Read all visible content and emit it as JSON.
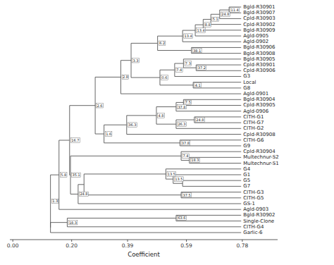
{
  "chart_data": {
    "type": "dendrogram",
    "xlabel": "Coefficient",
    "xlim": [
      -0.01,
      0.9
    ],
    "xticks": [
      {
        "value": 0.0,
        "label": "0.00"
      },
      {
        "value": 0.2,
        "label": "0.20"
      },
      0.39,
      0.59,
      0.78
    ],
    "color": "#555555",
    "leaf_value": 0.776,
    "categories": [
      "Bgld-R30901",
      "Bgld-R30907",
      "Cpld-R30903",
      "Cpld-R30902",
      "Bgld-R30909",
      "Agld-0905",
      "Agld-0902",
      "Bgld-R30906",
      "Bgld-R30908",
      "Bgld-R30905",
      "Cpld-R30901",
      "Cpld-R30906",
      "G3",
      "Local",
      "G8",
      "Agld-0901",
      "Bgld-R30904",
      "Cpld-R30905",
      "Agld-0906",
      "CITH-G1",
      "CITH-G7",
      "CITH-G2",
      "Cpld-R30908",
      "CITH-G6",
      "G9",
      "Cpld-R30904",
      "Multechnur-S2",
      "Multechnur-S1",
      "G4",
      "G1",
      "G5",
      "G7",
      "CITH-G3",
      "CITH-G5",
      "GS-1",
      "Agld-0903",
      "Bgld-R30902",
      "Single-Clone",
      "CITH-G4",
      "Garlic-6"
    ],
    "merges": [
      {
        "children": [
          0,
          1
        ],
        "value": 0.735,
        "label": "11.4"
      },
      {
        "children": [
          40,
          2
        ],
        "value": 0.703,
        "label": "24.8"
      },
      {
        "children": [
          41,
          3
        ],
        "value": 0.673,
        "label": "5.1"
      },
      {
        "children": [
          42,
          4
        ],
        "value": 0.647,
        "label": "8.8"
      },
      {
        "children": [
          43,
          5
        ],
        "value": 0.62,
        "label": "13.4"
      },
      {
        "children": [
          44,
          6
        ],
        "value": 0.577,
        "label": "13.4"
      },
      {
        "children": [
          7,
          8
        ],
        "value": 0.607,
        "label": "38.1"
      },
      {
        "children": [
          45,
          46
        ],
        "value": 0.492,
        "label": "6.2"
      },
      {
        "children": [
          10,
          11
        ],
        "value": 0.623,
        "label": "37.2"
      },
      {
        "children": [
          9,
          48
        ],
        "value": 0.58,
        "label": "7.3"
      },
      {
        "children": [
          49,
          12
        ],
        "value": 0.55,
        "label": "7.4"
      },
      {
        "children": [
          13,
          14
        ],
        "value": 0.613,
        "label": "4.1"
      },
      {
        "children": [
          50,
          51
        ],
        "value": 0.5,
        "label": "0.6"
      },
      {
        "children": [
          47,
          52
        ],
        "value": 0.402,
        "label": "3.3"
      },
      {
        "children": [
          53,
          15
        ],
        "value": 0.367,
        "label": "2.8"
      },
      {
        "children": [
          16,
          17
        ],
        "value": 0.58,
        "label": "7.5"
      },
      {
        "children": [
          55,
          18
        ],
        "value": 0.555,
        "label": "37.8"
      },
      {
        "children": [
          19,
          20
        ],
        "value": 0.617,
        "label": "24.8"
      },
      {
        "children": [
          57,
          21
        ],
        "value": 0.555,
        "label": "26.3"
      },
      {
        "children": [
          56,
          58
        ],
        "value": 0.488,
        "label": "4.8"
      },
      {
        "children": [
          59,
          22
        ],
        "value": 0.387,
        "label": "36.3"
      },
      {
        "children": [
          23,
          24
        ],
        "value": 0.568,
        "label": "37.8"
      },
      {
        "children": [
          60,
          61
        ],
        "value": 0.31,
        "label": "1.6"
      },
      {
        "children": [
          54,
          62
        ],
        "value": 0.28,
        "label": "2.6"
      },
      {
        "children": [
          26,
          27
        ],
        "value": 0.6,
        "label": "18.3"
      },
      {
        "children": [
          25,
          64
        ],
        "value": 0.572,
        "label": "7.4"
      },
      {
        "children": [
          30,
          31
        ],
        "value": 0.577,
        "label": null
      },
      {
        "children": [
          29,
          66
        ],
        "value": 0.545,
        "label": "13.5"
      },
      {
        "children": [
          28,
          67
        ],
        "value": 0.52,
        "label": "13.5"
      },
      {
        "children": [
          32,
          33
        ],
        "value": 0.572,
        "label": "37.5"
      },
      {
        "children": [
          68,
          69
        ],
        "value": 0.242,
        "label": null
      },
      {
        "children": [
          70,
          34
        ],
        "value": 0.222,
        "label": "24.8"
      },
      {
        "children": [
          65,
          71
        ],
        "value": 0.196,
        "label": "35.1"
      },
      {
        "children": [
          63,
          72
        ],
        "value": 0.193,
        "label": "16.7"
      },
      {
        "children": [
          73,
          35
        ],
        "value": 0.157,
        "label": "5.8"
      },
      {
        "children": [
          36,
          37
        ],
        "value": 0.555,
        "label": "63.6"
      },
      {
        "children": [
          75,
          38
        ],
        "value": 0.185,
        "label": "18.3"
      },
      {
        "children": [
          76,
          39
        ],
        "value": 0.128,
        "label": null
      },
      {
        "children": [
          74,
          77
        ],
        "value": 0.128,
        "label": "1.3"
      }
    ]
  }
}
